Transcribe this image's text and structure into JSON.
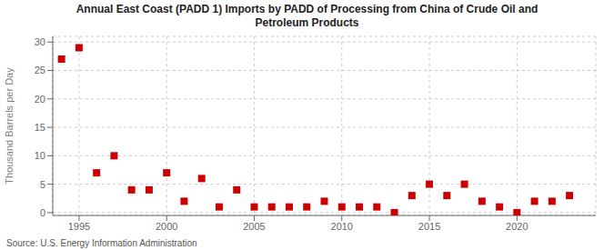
{
  "chart_data": {
    "type": "scatter",
    "title": "Annual East Coast (PADD 1) Imports by PADD of Processing from China of Crude Oil and\nPetroleum Products",
    "ylabel": "Thousand Barrels per Day",
    "source": "Source: U.S. Energy Information Administration",
    "x": [
      1994,
      1995,
      1996,
      1997,
      1998,
      1999,
      2000,
      2001,
      2002,
      2003,
      2004,
      2005,
      2006,
      2007,
      2008,
      2009,
      2010,
      2011,
      2012,
      2013,
      2014,
      2015,
      2016,
      2017,
      2018,
      2019,
      2020,
      2021,
      2022,
      2023
    ],
    "values": [
      27,
      29,
      7,
      10,
      4,
      4,
      7,
      2,
      6,
      1,
      4,
      1,
      1,
      1,
      1,
      2,
      1,
      1,
      1,
      0,
      3,
      5,
      3,
      5,
      2,
      1,
      0,
      2,
      2,
      3
    ],
    "color": "#cc0000",
    "marker": "square",
    "xlim": [
      1993.5,
      2024.5
    ],
    "ylim": [
      -0.5,
      31
    ],
    "xticks": [
      1995,
      2000,
      2005,
      2010,
      2015,
      2020
    ],
    "yticks": [
      0,
      5,
      10,
      15,
      20,
      25,
      30
    ],
    "grid": true
  }
}
